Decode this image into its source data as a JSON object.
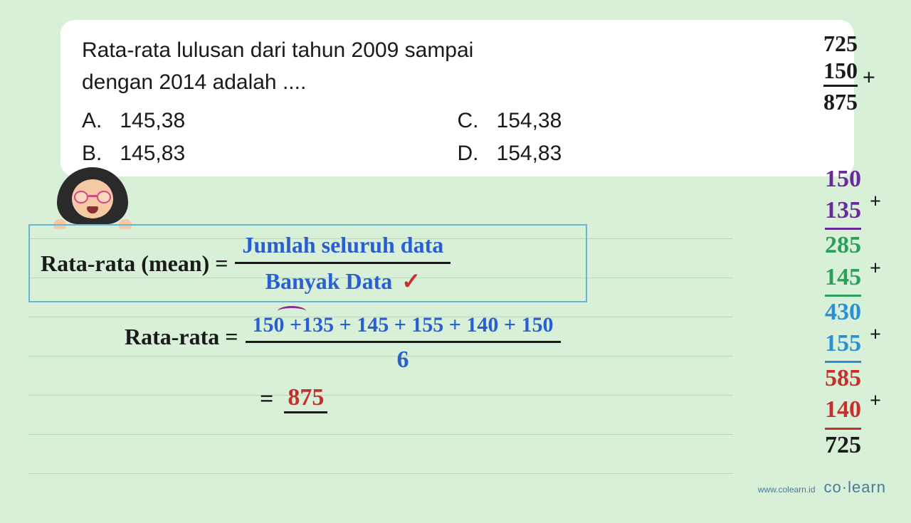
{
  "question": {
    "line1": "Rata-rata lulusan dari tahun 2009 sampai",
    "line2": "dengan 2014 adalah ....",
    "options": {
      "a": {
        "key": "A.",
        "val": "145,38"
      },
      "b": {
        "key": "B.",
        "val": "145,83"
      },
      "c": {
        "key": "C.",
        "val": "154,38"
      },
      "d": {
        "key": "D.",
        "val": "154,83"
      }
    }
  },
  "addition_top": {
    "n1": "725",
    "n2": "150",
    "sum": "875",
    "op": "+",
    "color": "#1a1a1a"
  },
  "formula": {
    "label": "Rata-rata (mean) =",
    "numerator": "Jumlah seluruh data",
    "denominator": "Banyak Data",
    "check": "✓",
    "label_color": "#1a1a1a",
    "formula_color": "#2a5fd4",
    "check_color": "#c4302b",
    "box_border": "#6bb5d4"
  },
  "calculation": {
    "label": "Rata-rata =",
    "numerator": "150 +135 + 145 + 155 + 140 + 150",
    "denominator": "6",
    "arc_color": "#8e2a8e"
  },
  "result": {
    "eq": "=",
    "val": "875",
    "val_color": "#c4302b"
  },
  "side_sums": [
    {
      "text": "150",
      "color": "#6a2a9e",
      "underline": false,
      "plus": false
    },
    {
      "text": "135",
      "color": "#6a2a9e",
      "underline": true,
      "underline_color": "#6a2a9e",
      "plus": true
    },
    {
      "text": "285",
      "color": "#2aa05a",
      "underline": false,
      "plus": false
    },
    {
      "text": "145",
      "color": "#2aa05a",
      "underline": true,
      "underline_color": "#2aa05a",
      "plus": true
    },
    {
      "text": "430",
      "color": "#2a8fd4",
      "underline": false,
      "plus": false
    },
    {
      "text": "155",
      "color": "#2a8fd4",
      "underline": true,
      "underline_color": "#2a8fd4",
      "plus": true
    },
    {
      "text": "585",
      "color": "#c4302b",
      "underline": false,
      "plus": false
    },
    {
      "text": "140",
      "color": "#c4302b",
      "underline": true,
      "underline_color": "#c4302b",
      "plus": true
    },
    {
      "text": "725",
      "color": "#1a1a1a",
      "underline": false,
      "plus": false
    }
  ],
  "footer": {
    "url": "www.colearn.id",
    "brand": "co·learn"
  },
  "colors": {
    "page_bg": "#d8f0d8",
    "card_bg": "#ffffff",
    "text": "#1a1a1a",
    "blue": "#2a5fd4",
    "red": "#c4302b",
    "purple": "#6a2a9e",
    "green": "#2aa05a",
    "teal": "#2a8fd4",
    "box_border": "#6bb5d4"
  },
  "ruled_line_positions": [
    0,
    55,
    110,
    165,
    220,
    275,
    330
  ]
}
